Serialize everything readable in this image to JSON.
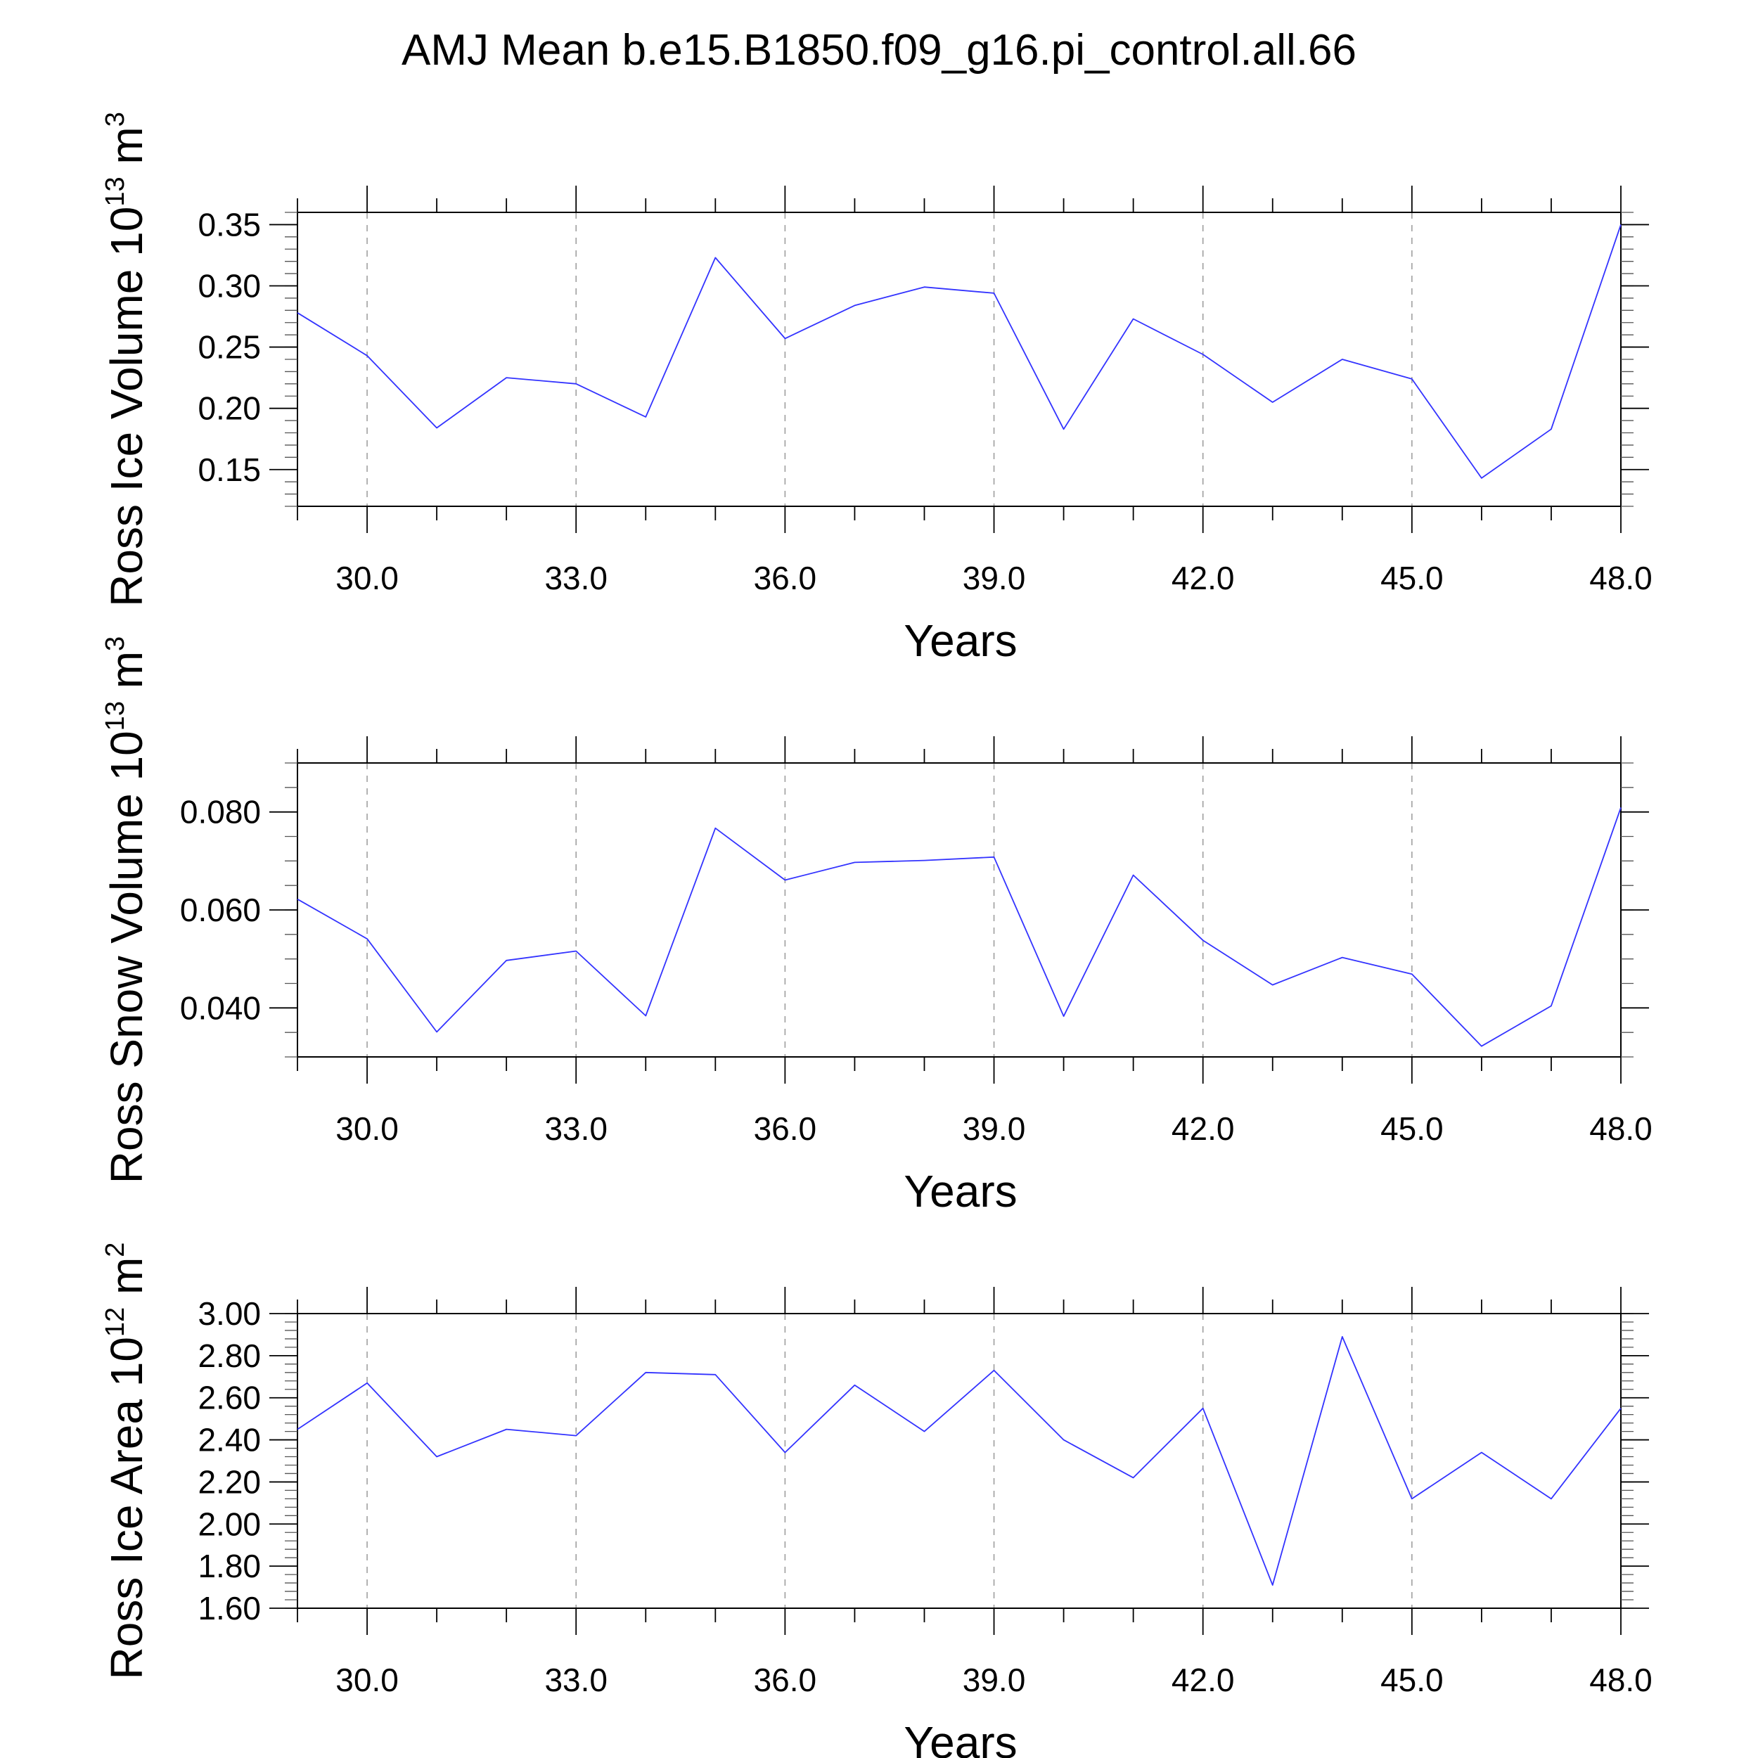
{
  "title": "AMJ Mean b.e15.B1850.f09_g16.pi_control.all.66",
  "line_color": "#3333ff",
  "chart_data": [
    {
      "type": "line",
      "ylabel": {
        "text": "Ross Ice Volume 10",
        "exponent": "13",
        "unit": " m",
        "unit_exponent": "3"
      },
      "xlabel": "Years",
      "xlim": [
        29,
        48
      ],
      "ylim": [
        0.12,
        0.36
      ],
      "xticks": [
        30,
        33,
        36,
        39,
        42,
        45,
        48
      ],
      "xtick_labels": [
        "30.0",
        "33.0",
        "36.0",
        "39.0",
        "42.0",
        "45.0",
        "48.0"
      ],
      "yticks": [
        0.15,
        0.2,
        0.25,
        0.3,
        0.35
      ],
      "ytick_labels": [
        "0.15",
        "0.20",
        "0.25",
        "0.30",
        "0.35"
      ],
      "yminor_step": 0.01,
      "grid": "vertical dashed at major x ticks",
      "series": [
        {
          "name": "Ross Ice Volume",
          "x": [
            29,
            30,
            31,
            32,
            33,
            34,
            35,
            36,
            37,
            38,
            39,
            40,
            41,
            42,
            43,
            44,
            45,
            46,
            47,
            48
          ],
          "values": [
            0.278,
            0.243,
            0.184,
            0.225,
            0.22,
            0.193,
            0.323,
            0.257,
            0.284,
            0.299,
            0.294,
            0.183,
            0.273,
            0.244,
            0.205,
            0.24,
            0.224,
            0.143,
            0.183,
            0.35
          ]
        }
      ]
    },
    {
      "type": "line",
      "ylabel": {
        "text": "Ross Snow Volume 10",
        "exponent": "13",
        "unit": " m",
        "unit_exponent": "3"
      },
      "xlabel": "Years",
      "xlim": [
        29,
        48
      ],
      "ylim": [
        0.03,
        0.09
      ],
      "xticks": [
        30,
        33,
        36,
        39,
        42,
        45,
        48
      ],
      "xtick_labels": [
        "30.0",
        "33.0",
        "36.0",
        "39.0",
        "42.0",
        "45.0",
        "48.0"
      ],
      "yticks": [
        0.04,
        0.06,
        0.08
      ],
      "ytick_labels": [
        "0.040",
        "0.060",
        "0.080"
      ],
      "yminor_step": 0.005,
      "grid": "vertical dashed at major x ticks",
      "series": [
        {
          "name": "Ross Snow Volume",
          "x": [
            29,
            30,
            31,
            32,
            33,
            34,
            35,
            36,
            37,
            38,
            39,
            40,
            41,
            42,
            43,
            44,
            45,
            46,
            47,
            48
          ],
          "values": [
            0.0622,
            0.0541,
            0.0351,
            0.0497,
            0.0516,
            0.0384,
            0.0767,
            0.0661,
            0.0697,
            0.0701,
            0.0708,
            0.0383,
            0.0671,
            0.0538,
            0.0447,
            0.0503,
            0.0469,
            0.0322,
            0.0404,
            0.0809
          ]
        }
      ]
    },
    {
      "type": "line",
      "ylabel": {
        "text": "Ross Ice Area 10",
        "exponent": "12",
        "unit": " m",
        "unit_exponent": "2"
      },
      "xlabel": "Years",
      "xlim": [
        29,
        48
      ],
      "ylim": [
        1.6,
        3.0
      ],
      "xticks": [
        30,
        33,
        36,
        39,
        42,
        45,
        48
      ],
      "xtick_labels": [
        "30.0",
        "33.0",
        "36.0",
        "39.0",
        "42.0",
        "45.0",
        "48.0"
      ],
      "yticks": [
        1.6,
        1.8,
        2.0,
        2.2,
        2.4,
        2.6,
        2.8,
        3.0
      ],
      "ytick_labels": [
        "1.60",
        "1.80",
        "2.00",
        "2.20",
        "2.40",
        "2.60",
        "2.80",
        "3.00"
      ],
      "yminor_step": 0.04,
      "grid": "vertical dashed at major x ticks",
      "series": [
        {
          "name": "Ross Ice Area",
          "x": [
            29,
            30,
            31,
            32,
            33,
            34,
            35,
            36,
            37,
            38,
            39,
            40,
            41,
            42,
            43,
            44,
            45,
            46,
            47,
            48
          ],
          "values": [
            2.45,
            2.67,
            2.32,
            2.45,
            2.42,
            2.72,
            2.71,
            2.34,
            2.66,
            2.44,
            2.73,
            2.4,
            2.22,
            2.55,
            1.71,
            2.89,
            2.12,
            2.34,
            2.12,
            2.55
          ]
        }
      ]
    }
  ]
}
